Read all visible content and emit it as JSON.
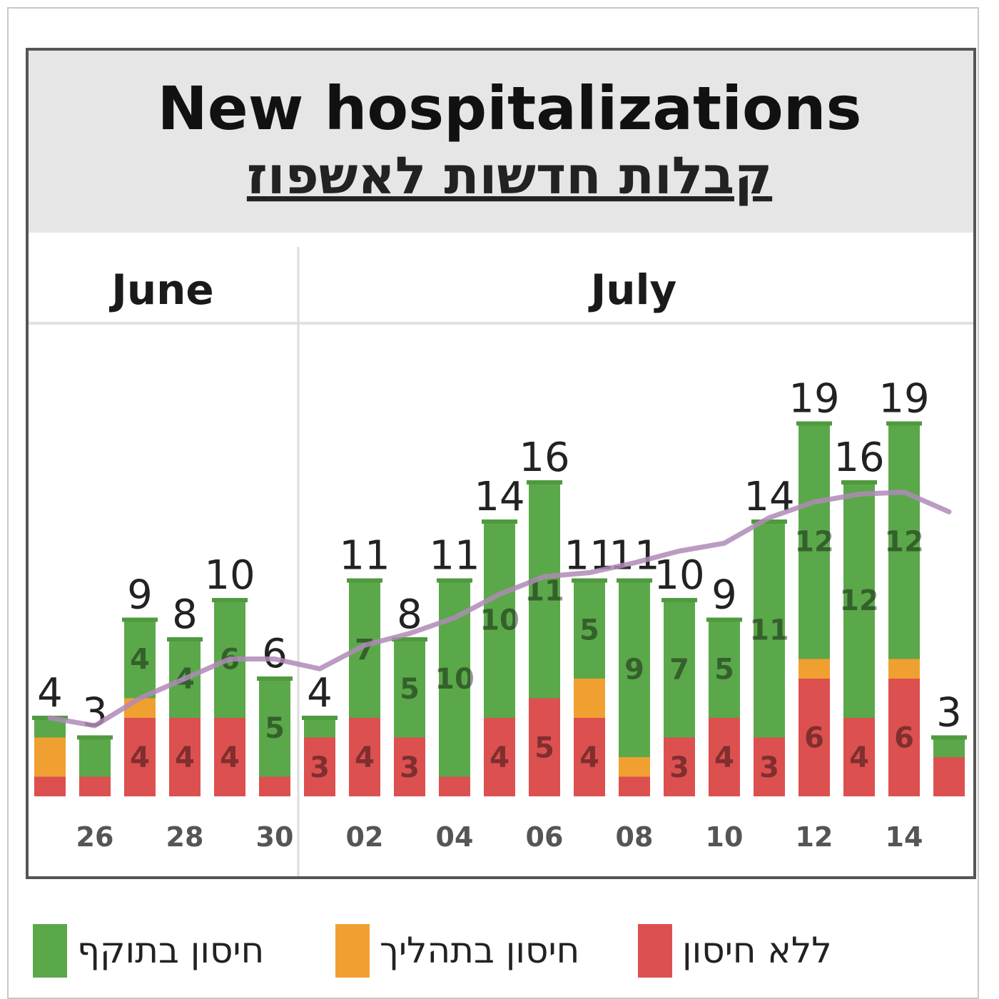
{
  "chart_data": {
    "type": "bar",
    "stacked": true,
    "title": "New hospitalizations",
    "subtitle": "קבלות חדשות לאשפוז",
    "months": [
      "June",
      "July"
    ],
    "x_tick_labels": [
      "26",
      "28",
      "30",
      "02",
      "04",
      "06",
      "08",
      "10",
      "12",
      "14"
    ],
    "totals": [
      4,
      3,
      9,
      8,
      10,
      6,
      4,
      11,
      8,
      11,
      14,
      16,
      11,
      11,
      10,
      9,
      14,
      19,
      16,
      19,
      3
    ],
    "series": [
      {
        "name": "ללא חיסון",
        "color": "#dc5050",
        "values": [
          1,
          1,
          4,
          4,
          4,
          1,
          3,
          4,
          3,
          1,
          4,
          5,
          4,
          1,
          3,
          4,
          3,
          6,
          4,
          6,
          2
        ],
        "labels": [
          "",
          "",
          "4",
          "4",
          "4",
          "",
          "3",
          "4",
          "3",
          "",
          "4",
          "5",
          "4",
          "",
          "3",
          "4",
          "3",
          "6",
          "4",
          "6",
          ""
        ]
      },
      {
        "name": "חיסון בתהליך",
        "color": "#f0a030",
        "values": [
          2,
          0,
          1,
          0,
          0,
          0,
          0,
          0,
          0,
          0,
          0,
          0,
          2,
          1,
          0,
          0,
          0,
          1,
          0,
          1,
          0
        ],
        "labels": [
          "",
          "",
          "",
          "",
          "",
          "",
          "",
          "",
          "",
          "",
          "",
          "",
          "",
          "",
          "",
          "",
          "",
          "",
          "",
          "",
          ""
        ]
      },
      {
        "name": "חיסון בתוקף",
        "color": "#5ba84a",
        "values": [
          1,
          2,
          4,
          4,
          6,
          5,
          1,
          7,
          5,
          10,
          10,
          11,
          5,
          9,
          7,
          5,
          11,
          12,
          12,
          12,
          1
        ],
        "labels": [
          "",
          "",
          "4",
          "4",
          "6",
          "5",
          "",
          "7",
          "5",
          "10",
          "10",
          "11",
          "5",
          "9",
          "7",
          "5",
          "11",
          "12",
          "12",
          "12",
          ""
        ]
      }
    ],
    "trend_line": {
      "color": "#b08ab8",
      "values": [
        4,
        3.6,
        5,
        6,
        7,
        7,
        6.5,
        7.7,
        8.3,
        9.1,
        10.3,
        11.2,
        11.4,
        11.9,
        12.5,
        12.9,
        14.2,
        15,
        15.4,
        15.5,
        14.5
      ]
    },
    "ylim": [
      0,
      22
    ]
  }
}
